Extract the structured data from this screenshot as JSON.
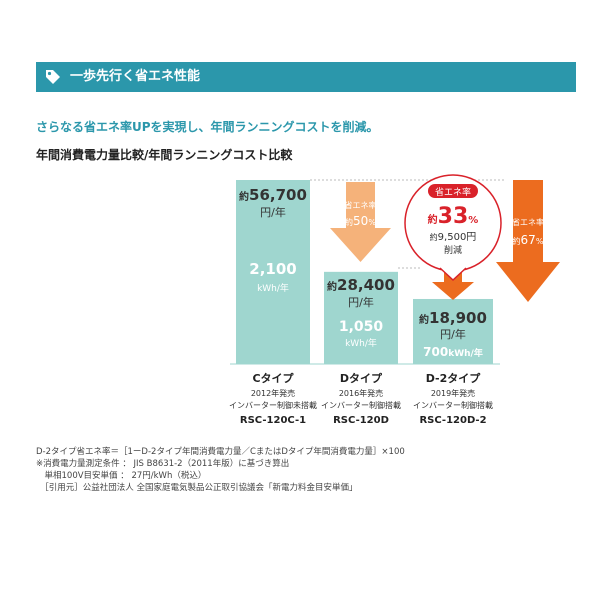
{
  "banner": {
    "title": "一歩先行く省エネ性能",
    "icon": "tag-icon",
    "color": "#2b97ab"
  },
  "lead": "さらなる省エネ率UPを実現し、年間ランニングコストを削減。",
  "subhead": "年間消費電力量比較/年間ランニングコスト比較",
  "colors": {
    "bar": "#9fd6cf",
    "bar_text": "#ffffff",
    "arrow_light": "#f5b27a",
    "arrow_dark": "#ec6c1f",
    "accent_red": "#d9222a"
  },
  "chart_data": {
    "type": "bar",
    "categories": [
      "Cタイプ",
      "Dタイプ",
      "D-2タイプ"
    ],
    "series": [
      {
        "name": "年間ランニングコスト",
        "values": [
          56700,
          28400,
          18900
        ]
      }
    ],
    "bars": [
      {
        "cost_prefix": "約",
        "cost": "56,700",
        "cost_unit": "円/年",
        "energy": "2,100",
        "energy_unit": "kWh/年",
        "type_label": "Cタイプ",
        "year": "2012年発売",
        "feature": "インバーター制御未搭載",
        "model": "RSC-120C-1"
      },
      {
        "cost_prefix": "約",
        "cost": "28,400",
        "cost_unit": "円/年",
        "energy": "1,050",
        "energy_unit": "kWh/年",
        "type_label": "Dタイプ",
        "year": "2016年発売",
        "feature": "インバーター制御搭載",
        "model": "RSC-120D"
      },
      {
        "cost_prefix": "約",
        "cost": "18,900",
        "cost_unit": "円/年",
        "energy": "700",
        "energy_unit": "kWh/年",
        "type_label": "D-2タイプ",
        "year": "2019年発売",
        "feature": "インバーター制御搭載",
        "model": "RSC-120D-2"
      }
    ],
    "annotations": {
      "arrow_c_to_d": {
        "label": "省エネ率",
        "prefix": "約",
        "value": "50",
        "unit": "%"
      },
      "arrow_c_to_d2": {
        "label": "省エネ率",
        "prefix": "約",
        "value": "67",
        "unit": "%"
      },
      "bubble": {
        "label": "省エネ率",
        "prefix": "約",
        "value": "33",
        "unit": "%",
        "saving_prefix": "約",
        "saving": "9,500円",
        "saving_label": "削減"
      }
    },
    "title": "年間消費電力量比較/年間ランニングコスト比較",
    "xlabel": "",
    "ylabel": "",
    "ylim": [
      0,
      60000
    ],
    "grid": false,
    "legend": "none"
  },
  "notes": [
    "D-2タイプ省エネ率＝［1ーD-2タイプ年間消費電力量／CまたはDタイプ年間消費電力量］×100",
    "※消費電力量測定条件 ： JIS B8631-2（2011年版）に基づき算出",
    "　単相100V目安単価 ： 27円/kWh（税込）",
    "　［引用元］公益社団法人 全国家庭電気製品公正取引協議会「新電力料金目安単価」"
  ]
}
